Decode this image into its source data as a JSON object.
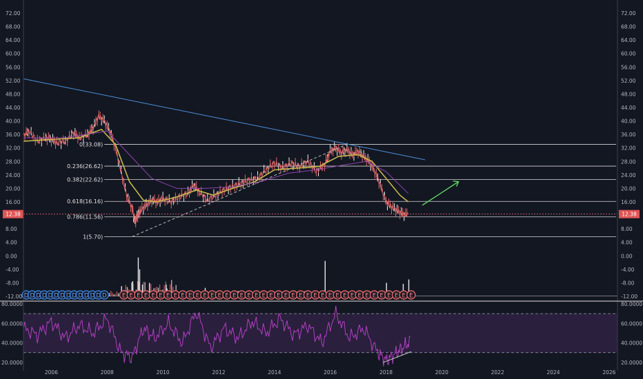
{
  "chart_data": [
    {
      "type": "candlestick",
      "title": "",
      "ylim": [
        -12,
        72
      ],
      "y_ticks": [
        "-12.00",
        "-8.00",
        "-4.00",
        "0.00",
        "4.00",
        "8.00",
        "12.00",
        "16.00",
        "20.00",
        "24.00",
        "28.00",
        "32.00",
        "36.00",
        "40.00",
        "44.00",
        "48.00",
        "52.00",
        "56.00",
        "60.00",
        "64.00",
        "68.00",
        "72.00"
      ],
      "x_ticks": [
        "2006",
        "2008",
        "2010",
        "2012",
        "2014",
        "2016",
        "2018",
        "2020",
        "2022",
        "2024",
        "2026"
      ],
      "x_range": [
        2005.0,
        2026.3
      ],
      "last_price": "12.38",
      "series": [
        {
          "kind": "close",
          "color": "#e06666",
          "x": [
            2005.0,
            2005.2,
            2005.5,
            2005.8,
            2006.0,
            2006.2,
            2006.5,
            2006.8,
            2007.0,
            2007.3,
            2007.5,
            2007.7,
            2007.9,
            2008.1,
            2008.3,
            2008.5,
            2008.7,
            2008.9,
            2009.0,
            2009.1,
            2009.2,
            2009.4,
            2009.6,
            2009.8,
            2010.0,
            2010.3,
            2010.6,
            2010.9,
            2011.1,
            2011.3,
            2011.6,
            2011.9,
            2012.2,
            2012.5,
            2012.8,
            2013.1,
            2013.4,
            2013.7,
            2014.0,
            2014.3,
            2014.6,
            2014.9,
            2015.2,
            2015.5,
            2015.8,
            2016.0,
            2016.2,
            2016.4,
            2016.6,
            2016.8,
            2017.0,
            2017.2,
            2017.4,
            2017.6,
            2017.8,
            2018.0,
            2018.2,
            2018.4,
            2018.6,
            2018.8
          ],
          "y": [
            35.5,
            37.0,
            34.0,
            35.0,
            34.5,
            33.5,
            34.0,
            36.5,
            35.0,
            36.0,
            38.0,
            41.5,
            40.0,
            37.0,
            32.0,
            25.0,
            18.0,
            14.0,
            10.0,
            12.0,
            13.5,
            15.0,
            16.5,
            16.0,
            17.0,
            16.0,
            17.5,
            18.5,
            21.0,
            19.0,
            16.5,
            18.0,
            19.5,
            20.5,
            21.5,
            22.5,
            23.0,
            25.5,
            27.5,
            26.0,
            27.5,
            26.5,
            28.0,
            25.0,
            27.0,
            31.0,
            32.0,
            30.5,
            31.5,
            30.0,
            31.0,
            29.5,
            28.0,
            25.0,
            21.0,
            16.0,
            14.5,
            13.5,
            12.5,
            12.38
          ]
        },
        {
          "kind": "ma-fast",
          "color": "#c8b84a",
          "x": [
            2005.0,
            2006.0,
            2007.0,
            2007.8,
            2008.3,
            2008.8,
            2009.3,
            2009.8,
            2010.5,
            2011.2,
            2011.8,
            2012.5,
            2013.3,
            2014.0,
            2014.8,
            2015.6,
            2016.3,
            2017.0,
            2017.5,
            2018.0,
            2018.5,
            2018.8
          ],
          "y": [
            34.0,
            34.5,
            35.0,
            37.5,
            33.0,
            22.0,
            16.5,
            16.0,
            17.5,
            19.5,
            18.0,
            20.0,
            22.0,
            25.5,
            26.0,
            26.5,
            29.5,
            30.0,
            28.0,
            23.0,
            18.0,
            16.0
          ]
        },
        {
          "kind": "ma-slow",
          "color": "#8e44ad",
          "x": [
            2005.0,
            2006.5,
            2008.0,
            2008.8,
            2009.6,
            2010.5,
            2011.5,
            2012.5,
            2013.5,
            2014.5,
            2015.5,
            2016.5,
            2017.3,
            2018.0,
            2018.8
          ],
          "y": [
            35.0,
            35.0,
            37.0,
            30.0,
            23.0,
            20.0,
            20.0,
            20.5,
            22.0,
            24.5,
            25.5,
            27.0,
            28.0,
            25.0,
            18.5
          ]
        }
      ],
      "trendlines": [
        {
          "kind": "long-resistance",
          "color": "#4a90d9",
          "x": [
            2005.0,
            2019.4
          ],
          "y": [
            52.5,
            28.5
          ]
        },
        {
          "kind": "support-dashed",
          "color": "#bbbbbb",
          "x": [
            2008.9,
            2016.6
          ],
          "y": [
            5.7,
            33.08
          ]
        },
        {
          "kind": "forecast-arrow",
          "color": "#5fd35f",
          "x": [
            2019.3,
            2020.6
          ],
          "y": [
            15.0,
            22.0
          ]
        },
        {
          "kind": "rsi-divergence",
          "color": "#cccccc",
          "x": [
            2017.9,
            2018.9
          ],
          "y": [
            20.0,
            31.0
          ]
        }
      ],
      "fib_levels": [
        {
          "label": "0(33.08)",
          "value": 33.08
        },
        {
          "label": "0.236(26.62)",
          "value": 26.62
        },
        {
          "label": "0.382(22.62)",
          "value": 22.62
        },
        {
          "label": "0.618(16.16)",
          "value": 16.16
        },
        {
          "label": "0.786(11.56)",
          "value": 11.56
        },
        {
          "label": "1(5.70)",
          "value": 5.7
        }
      ],
      "volume_spikes": [
        {
          "x": 2009.1,
          "v": -0.5
        },
        {
          "x": 2009.15,
          "v": -4.0
        },
        {
          "x": 2009.25,
          "v": -8.5
        },
        {
          "x": 2008.9,
          "v": -7.5
        },
        {
          "x": 2009.5,
          "v": -8.0
        },
        {
          "x": 2010.1,
          "v": -8.5
        },
        {
          "x": 2015.8,
          "v": -1.5
        },
        {
          "x": 2018.0,
          "v": -8.0
        },
        {
          "x": 2018.6,
          "v": -8.3
        },
        {
          "x": 2018.8,
          "v": -7.0
        },
        {
          "x": 2008.5,
          "v": -9.0
        },
        {
          "x": 2011.5,
          "v": -9.5
        }
      ],
      "events": {
        "dividend_label": "D",
        "earnings_label": "E",
        "dividend_x_range": [
          2005.1,
          2007.9
        ],
        "dividend_count": 14,
        "earnings_x_range": [
          2008.6,
          2018.9
        ],
        "earnings_count": 40
      }
    },
    {
      "type": "line",
      "title": "",
      "ylim": [
        15,
        80
      ],
      "y_ticks": [
        "80.0000",
        "60.0000",
        "40.0000",
        "20.0000"
      ],
      "bands": [
        30,
        70
      ],
      "band_color": "#2a1f3d",
      "series": [
        {
          "kind": "rsi",
          "color": "#b040c0",
          "x": [
            2005.0,
            2005.5,
            2006.0,
            2006.5,
            2007.0,
            2007.5,
            2008.0,
            2008.5,
            2008.9,
            2009.3,
            2009.7,
            2010.2,
            2010.7,
            2011.2,
            2011.7,
            2012.2,
            2012.7,
            2013.2,
            2013.7,
            2014.2,
            2014.7,
            2015.2,
            2015.7,
            2016.2,
            2016.7,
            2017.2,
            2017.7,
            2018.0,
            2018.3,
            2018.6,
            2018.9
          ],
          "y": [
            55,
            48,
            62,
            45,
            58,
            50,
            65,
            30,
            25,
            55,
            45,
            60,
            40,
            72,
            35,
            55,
            45,
            62,
            50,
            65,
            48,
            58,
            40,
            70,
            45,
            55,
            30,
            22,
            28,
            35,
            42
          ]
        }
      ]
    }
  ]
}
